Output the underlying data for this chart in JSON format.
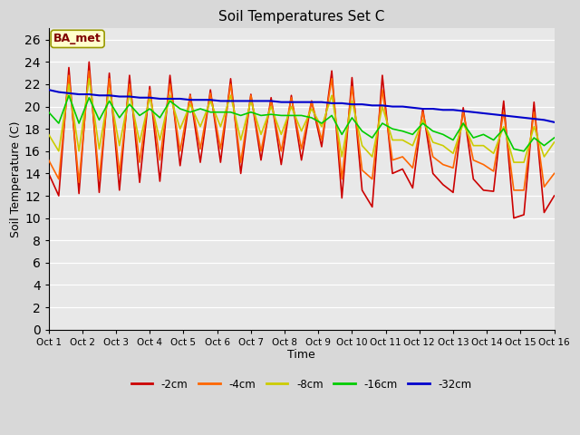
{
  "title": "Soil Temperatures Set C",
  "xlabel": "Time",
  "ylabel": "Soil Temperature (C)",
  "annotation": "BA_met",
  "ylim": [
    0,
    27
  ],
  "yticks": [
    0,
    2,
    4,
    6,
    8,
    10,
    12,
    14,
    16,
    18,
    20,
    22,
    24,
    26
  ],
  "xlim": [
    0,
    15
  ],
  "xtick_labels": [
    "Oct 1",
    "Oct 2",
    "Oct 3",
    "Oct 4",
    "Oct 5",
    "Oct 6",
    "Oct 7",
    "Oct 8",
    "Oct 9",
    "Oct 10",
    "Oct 11",
    "Oct 12",
    "Oct 13",
    "Oct 14",
    "Oct 15",
    "Oct 16"
  ],
  "series": {
    "2cm": {
      "color": "#cc0000",
      "label": "-2cm"
    },
    "4cm": {
      "color": "#ff6600",
      "label": "-4cm"
    },
    "8cm": {
      "color": "#cccc00",
      "label": "-8cm"
    },
    "16cm": {
      "color": "#00cc00",
      "label": "-16cm"
    },
    "32cm": {
      "color": "#0000cc",
      "label": "-32cm"
    }
  },
  "t_2cm": [
    14.0,
    12.0,
    23.5,
    12.2,
    24.0,
    12.3,
    23.0,
    12.5,
    22.8,
    13.2,
    21.8,
    13.3,
    22.8,
    14.7,
    21.1,
    15.0,
    21.5,
    15.0,
    22.5,
    14.0,
    21.1,
    15.2,
    20.8,
    14.8,
    21.0,
    15.2,
    20.5,
    16.4,
    23.2,
    11.8,
    22.6,
    12.5,
    11.0,
    22.8,
    14.0,
    14.4,
    12.7,
    19.8,
    14.0,
    13.0,
    12.3,
    19.9,
    13.5,
    12.5,
    12.4,
    20.5,
    10.0,
    10.3,
    20.4,
    10.5,
    12.0
  ],
  "t_4cm": [
    15.2,
    13.5,
    22.8,
    13.2,
    23.2,
    13.5,
    22.5,
    14.0,
    22.0,
    15.0,
    21.5,
    15.2,
    22.0,
    16.0,
    21.0,
    16.2,
    21.2,
    16.2,
    22.0,
    15.0,
    21.0,
    16.0,
    20.5,
    16.0,
    20.8,
    16.2,
    20.5,
    17.0,
    22.5,
    13.5,
    21.8,
    14.3,
    13.5,
    21.5,
    15.2,
    15.5,
    14.5,
    19.5,
    15.5,
    14.8,
    14.5,
    19.5,
    15.2,
    14.8,
    14.2,
    19.5,
    12.5,
    12.5,
    19.5,
    12.8,
    14.0
  ],
  "t_8cm": [
    17.5,
    16.0,
    22.0,
    16.0,
    22.5,
    16.2,
    21.5,
    16.5,
    21.2,
    16.8,
    20.8,
    17.0,
    21.0,
    18.0,
    20.2,
    18.2,
    20.5,
    18.2,
    21.0,
    17.0,
    20.5,
    17.5,
    20.0,
    17.5,
    20.0,
    17.8,
    19.8,
    18.2,
    21.0,
    15.5,
    20.5,
    16.5,
    15.5,
    20.0,
    17.0,
    17.0,
    16.5,
    18.8,
    16.8,
    16.5,
    15.8,
    18.5,
    16.5,
    16.5,
    15.8,
    18.2,
    15.0,
    15.0,
    18.2,
    15.5,
    16.8
  ],
  "t_16cm": [
    19.5,
    18.5,
    21.0,
    18.5,
    20.8,
    18.8,
    20.5,
    19.0,
    20.2,
    19.2,
    19.8,
    19.0,
    20.5,
    19.8,
    19.5,
    19.8,
    19.5,
    19.5,
    19.5,
    19.2,
    19.5,
    19.2,
    19.3,
    19.2,
    19.2,
    19.2,
    19.0,
    18.5,
    19.2,
    17.5,
    19.0,
    17.8,
    17.2,
    18.5,
    18.0,
    17.8,
    17.5,
    18.5,
    17.8,
    17.5,
    17.0,
    18.5,
    17.2,
    17.5,
    17.0,
    18.0,
    16.2,
    16.0,
    17.2,
    16.5,
    17.2
  ],
  "t_32cm": [
    21.5,
    21.3,
    21.2,
    21.1,
    21.1,
    21.0,
    21.0,
    20.9,
    20.9,
    20.8,
    20.8,
    20.7,
    20.7,
    20.7,
    20.6,
    20.6,
    20.6,
    20.5,
    20.5,
    20.5,
    20.5,
    20.5,
    20.5,
    20.4,
    20.4,
    20.4,
    20.4,
    20.4,
    20.3,
    20.3,
    20.2,
    20.2,
    20.1,
    20.1,
    20.0,
    20.0,
    19.9,
    19.8,
    19.8,
    19.7,
    19.7,
    19.6,
    19.5,
    19.4,
    19.3,
    19.2,
    19.1,
    19.0,
    18.9,
    18.8,
    18.6
  ]
}
